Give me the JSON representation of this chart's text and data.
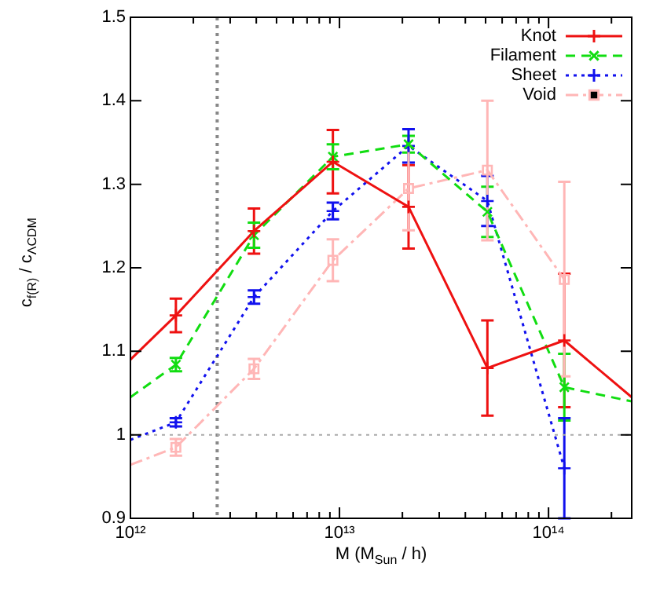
{
  "chart_data": {
    "type": "line",
    "xlabel": "M (M$_{Sun}$ / h)",
    "ylabel": "c$_{f(R)}$ / c$_{ΛCDM}$",
    "log": "x",
    "xlim": [
      1000000000000.0,
      250000000000000.0
    ],
    "ylim": [
      0.9,
      1.5
    ],
    "xticks": [
      {
        "value": 1000000000000.0,
        "label": "10¹²"
      },
      {
        "value": 2000000000000.0,
        "label": null
      },
      {
        "value": 3000000000000.0,
        "label": null
      },
      {
        "value": 4000000000000.0,
        "label": null
      },
      {
        "value": 5000000000000.0,
        "label": null
      },
      {
        "value": 6000000000000.0,
        "label": null
      },
      {
        "value": 7000000000000.0,
        "label": null
      },
      {
        "value": 8000000000000.0,
        "label": null
      },
      {
        "value": 9000000000000.0,
        "label": null
      },
      {
        "value": 10000000000000.0,
        "label": "10¹³"
      },
      {
        "value": 20000000000000.0,
        "label": null
      },
      {
        "value": 30000000000000.0,
        "label": null
      },
      {
        "value": 40000000000000.0,
        "label": null
      },
      {
        "value": 50000000000000.0,
        "label": null
      },
      {
        "value": 60000000000000.0,
        "label": null
      },
      {
        "value": 70000000000000.0,
        "label": null
      },
      {
        "value": 80000000000000.0,
        "label": null
      },
      {
        "value": 90000000000000.0,
        "label": null
      },
      {
        "value": 100000000000000.0,
        "label": "10¹⁴"
      },
      {
        "value": 200000000000000.0,
        "label": null
      }
    ],
    "yticks": [
      0.9,
      1,
      1.1,
      1.2,
      1.3,
      1.4,
      1.5
    ],
    "grid": false,
    "legend": "top right",
    "ref_lines": [
      {
        "axis": "x",
        "value": 2600000000000.0,
        "color": "#888888",
        "line_style": "dotted"
      },
      {
        "axis": "y",
        "value": 1,
        "color": "#aaaaaa",
        "line_style": "dotted"
      }
    ],
    "series": [
      {
        "name": "Knot",
        "color": "#ee1111",
        "marker": "cross",
        "line_style": "solid",
        "x": [
          1000000000000.0,
          1650000000000.0,
          3900000000000.0,
          9300000000000.0,
          21400000000000.0,
          51000000000000.0,
          119000000000000.0,
          250000000000000.0
        ],
        "values": [
          1.09,
          1.143,
          1.244,
          1.327,
          1.273,
          1.08,
          1.113,
          1.045
        ],
        "errors": [
          null,
          0.02,
          0.027,
          0.038,
          0.05,
          0.057,
          0.08,
          null
        ]
      },
      {
        "name": "Filament",
        "color": "#11dd11",
        "marker": "x",
        "line_style": "dashed",
        "x": [
          1000000000000.0,
          1650000000000.0,
          3900000000000.0,
          9300000000000.0,
          21400000000000.0,
          51000000000000.0,
          119000000000000.0,
          250000000000000.0
        ],
        "values": [
          1.045,
          1.084,
          1.239,
          1.333,
          1.348,
          1.267,
          1.057,
          1.04
        ],
        "errors": [
          null,
          0.008,
          0.015,
          0.015,
          0.01,
          0.03,
          0.04,
          null
        ]
      },
      {
        "name": "Sheet",
        "color": "#1111ee",
        "marker": "cross",
        "line_style": "dotted",
        "x": [
          1000000000000.0,
          1650000000000.0,
          3900000000000.0,
          9300000000000.0,
          21400000000000.0,
          51000000000000.0,
          119000000000000.0
        ],
        "values": [
          0.994,
          1.015,
          1.165,
          1.268,
          1.346,
          1.28,
          0.96
        ],
        "errors": [
          null,
          0.005,
          0.008,
          0.01,
          0.02,
          0.03,
          [
            0.9,
            1.02
          ]
        ]
      },
      {
        "name": "Void",
        "color": "#ffb6b6",
        "marker": "square",
        "line_style": "dashdot",
        "x": [
          1000000000000.0,
          1650000000000.0,
          3900000000000.0,
          9300000000000.0,
          21400000000000.0,
          51000000000000.0,
          119000000000000.0
        ],
        "values": [
          0.964,
          0.985,
          1.079,
          1.209,
          1.295,
          1.317,
          1.186
        ],
        "errors": [
          null,
          0.01,
          0.012,
          0.025,
          0.05,
          [
            1.233,
            1.4
          ],
          [
            1.07,
            1.303
          ]
        ]
      }
    ]
  }
}
